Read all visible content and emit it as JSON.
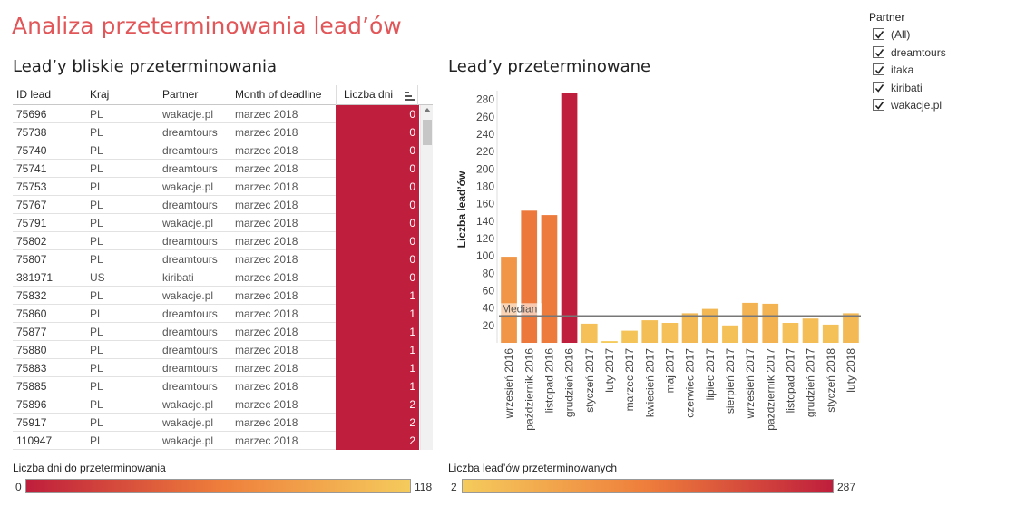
{
  "page": {
    "title": "Analiza przeterminowania lead’ów"
  },
  "table": {
    "title": "Lead’y bliskie przeterminowania",
    "headers": [
      "ID lead",
      "Kraj",
      "Partner",
      "Month of deadline",
      "Liczba dni"
    ],
    "rows": [
      [
        "75696",
        "PL",
        "wakacje.pl",
        "marzec 2018",
        "0"
      ],
      [
        "75738",
        "PL",
        "dreamtours",
        "marzec 2018",
        "0"
      ],
      [
        "75740",
        "PL",
        "dreamtours",
        "marzec 2018",
        "0"
      ],
      [
        "75741",
        "PL",
        "dreamtours",
        "marzec 2018",
        "0"
      ],
      [
        "75753",
        "PL",
        "wakacje.pl",
        "marzec 2018",
        "0"
      ],
      [
        "75767",
        "PL",
        "dreamtours",
        "marzec 2018",
        "0"
      ],
      [
        "75791",
        "PL",
        "wakacje.pl",
        "marzec 2018",
        "0"
      ],
      [
        "75802",
        "PL",
        "dreamtours",
        "marzec 2018",
        "0"
      ],
      [
        "75807",
        "PL",
        "dreamtours",
        "marzec 2018",
        "0"
      ],
      [
        "381971",
        "US",
        "kiribati",
        "marzec 2018",
        "0"
      ],
      [
        "75832",
        "PL",
        "wakacje.pl",
        "marzec 2018",
        "1"
      ],
      [
        "75860",
        "PL",
        "dreamtours",
        "marzec 2018",
        "1"
      ],
      [
        "75877",
        "PL",
        "dreamtours",
        "marzec 2018",
        "1"
      ],
      [
        "75880",
        "PL",
        "dreamtours",
        "marzec 2018",
        "1"
      ],
      [
        "75883",
        "PL",
        "dreamtours",
        "marzec 2018",
        "1"
      ],
      [
        "75885",
        "PL",
        "dreamtours",
        "marzec 2018",
        "1"
      ],
      [
        "75896",
        "PL",
        "wakacje.pl",
        "marzec 2018",
        "2"
      ],
      [
        "75917",
        "PL",
        "wakacje.pl",
        "marzec 2018",
        "2"
      ],
      [
        "110947",
        "PL",
        "wakacje.pl",
        "marzec 2018",
        "2"
      ]
    ]
  },
  "chart": {
    "title": "Lead’y przeterminowane",
    "median_label": "Median"
  },
  "chart_data": {
    "type": "bar",
    "ylabel": "Liczba lead’ów",
    "ylim": [
      0,
      290
    ],
    "yticks": [
      20,
      40,
      60,
      80,
      100,
      120,
      140,
      160,
      180,
      200,
      220,
      240,
      260,
      280
    ],
    "categories": [
      "wrzesień 2016",
      "październik 2016",
      "listopad 2016",
      "grudzień 2016",
      "styczeń 2017",
      "luty 2017",
      "marzec 2017",
      "kwiecień 2017",
      "maj 2017",
      "czerwiec 2017",
      "lipiec 2017",
      "sierpień 2017",
      "wrzesień 2017",
      "październik 2017",
      "listopad 2017",
      "grudzień 2017",
      "styczeń 2018",
      "luty 2018"
    ],
    "values": [
      99,
      152,
      147,
      287,
      22,
      2,
      14,
      26,
      23,
      34,
      39,
      20,
      46,
      45,
      23,
      28,
      21,
      34
    ],
    "median": 31,
    "color_scale": {
      "min": 2,
      "max": 287,
      "from": "#f5cb5c",
      "mid": "#ee7d3b",
      "to": "#bf1e3c"
    }
  },
  "legend_days": {
    "label": "Liczba dni do przeterminowania",
    "min": "0",
    "max": "118",
    "from": "#bf1e3c",
    "to": "#f5cb5c"
  },
  "legend_leads": {
    "label": "Liczba lead’ów przeterminowanych",
    "min": "2",
    "max": "287",
    "from": "#f5cb5c",
    "to": "#bf1e3c"
  },
  "filter": {
    "title": "Partner",
    "items": [
      {
        "label": "(All)",
        "checked": true
      },
      {
        "label": "dreamtours",
        "checked": true
      },
      {
        "label": "itaka",
        "checked": true
      },
      {
        "label": "kiribati",
        "checked": true
      },
      {
        "label": "wakacje.pl",
        "checked": true
      }
    ]
  }
}
